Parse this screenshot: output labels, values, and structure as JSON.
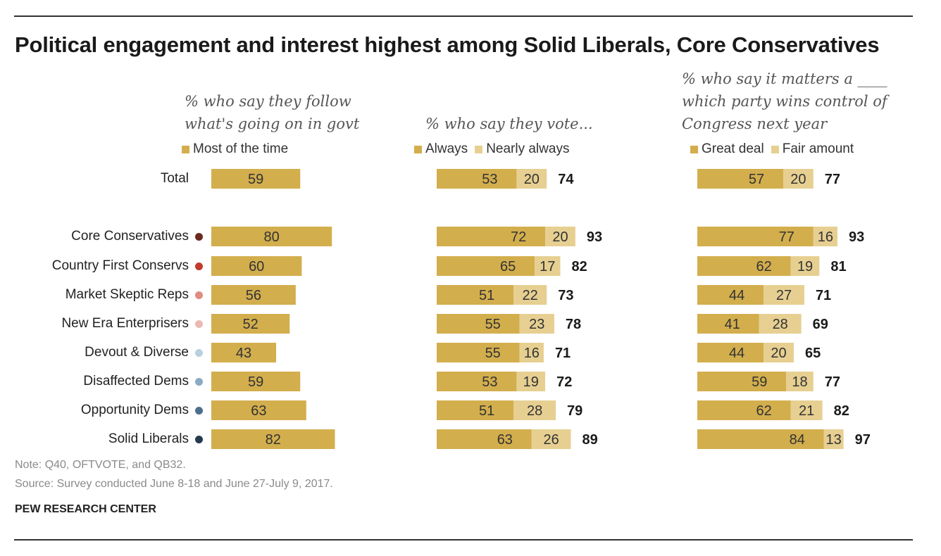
{
  "title": "Political engagement  and interest highest among Solid Liberals, Core Conservatives",
  "colors": {
    "dark": "#d3ae4d",
    "light": "#e6cf91",
    "total_text": "#1a1a1a",
    "value_text": "#333333"
  },
  "panels": [
    {
      "subtitle_lines": [
        "% who say they follow",
        "what's going on in govt"
      ],
      "legend": [
        "Most of the time"
      ]
    },
    {
      "subtitle_lines": [
        "% who say they vote..."
      ],
      "legend": [
        "Always",
        "Nearly always"
      ]
    },
    {
      "subtitle_lines": [
        "% who say it matters a  ____",
        "which party wins control of",
        "Congress next year"
      ],
      "legend": [
        "Great deal",
        "Fair amount"
      ]
    }
  ],
  "rows": [
    {
      "label": "Total",
      "dot_color": ""
    },
    {
      "label": "Core Conservatives",
      "dot_color": "#6b2a1e"
    },
    {
      "label": "Country First Conservs",
      "dot_color": "#c23a2b"
    },
    {
      "label": "Market Skeptic Reps",
      "dot_color": "#e08c80"
    },
    {
      "label": "New Era Enterprisers",
      "dot_color": "#ebb9b2"
    },
    {
      "label": "Devout & Diverse",
      "dot_color": "#b9d0e0"
    },
    {
      "label": "Disaffected Dems",
      "dot_color": "#8aaac4"
    },
    {
      "label": "Opportunity Dems",
      "dot_color": "#4d6f8e"
    },
    {
      "label": "Solid Liberals",
      "dot_color": "#253a4f"
    }
  ],
  "chart_data": [
    {
      "type": "bar",
      "title": "% who say they follow what's going on in govt",
      "categories": [
        "Total",
        "Core Conservatives",
        "Country First Conservs",
        "Market Skeptic Reps",
        "New Era Enterprisers",
        "Devout & Diverse",
        "Disaffected Dems",
        "Opportunity Dems",
        "Solid Liberals"
      ],
      "series": [
        {
          "name": "Most of the time",
          "values": [
            59,
            80,
            60,
            56,
            52,
            43,
            59,
            63,
            82
          ]
        }
      ]
    },
    {
      "type": "bar",
      "title": "% who say they vote...",
      "stacked": true,
      "categories": [
        "Total",
        "Core Conservatives",
        "Country First Conservs",
        "Market Skeptic Reps",
        "New Era Enterprisers",
        "Devout & Diverse",
        "Disaffected Dems",
        "Opportunity Dems",
        "Solid Liberals"
      ],
      "series": [
        {
          "name": "Always",
          "values": [
            53,
            72,
            65,
            51,
            55,
            55,
            53,
            51,
            63
          ]
        },
        {
          "name": "Nearly always",
          "values": [
            20,
            20,
            17,
            22,
            23,
            16,
            19,
            28,
            26
          ]
        }
      ],
      "totals": [
        74,
        93,
        82,
        73,
        78,
        71,
        72,
        79,
        89
      ]
    },
    {
      "type": "bar",
      "title": "% who say it matters a ____ which party wins control of Congress next year",
      "stacked": true,
      "categories": [
        "Total",
        "Core Conservatives",
        "Country First Conservs",
        "Market Skeptic Reps",
        "New Era Enterprisers",
        "Devout & Diverse",
        "Disaffected Dems",
        "Opportunity Dems",
        "Solid Liberals"
      ],
      "series": [
        {
          "name": "Great deal",
          "values": [
            57,
            77,
            62,
            44,
            41,
            44,
            59,
            62,
            84
          ]
        },
        {
          "name": "Fair amount",
          "values": [
            20,
            16,
            19,
            27,
            28,
            20,
            18,
            21,
            13
          ]
        }
      ],
      "totals": [
        77,
        93,
        81,
        71,
        69,
        65,
        77,
        82,
        97
      ]
    }
  ],
  "notes": {
    "note": "Note: Q40, OFTVOTE, and QB32.",
    "source": "Source: Survey conducted June 8-18 and June 27-July 9, 2017.",
    "credit": "PEW RESEARCH CENTER"
  }
}
